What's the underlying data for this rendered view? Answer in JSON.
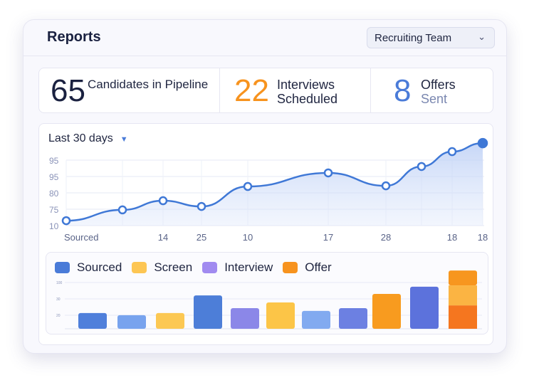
{
  "header": {
    "title": "Reports",
    "team_select": "Recruiting Team"
  },
  "stats": [
    {
      "value": "65",
      "label": "Candidates in Pipeline",
      "color": "#1a2140"
    },
    {
      "value": "22",
      "label_line1": "Interviews",
      "label_line2": "Scheduled",
      "color": "#f7931e"
    },
    {
      "value": "8",
      "label_line1": "Offers",
      "label_line2": "Sent",
      "color": "#4a7bd8"
    }
  ],
  "range_select": "Last 30 days",
  "chart_data": [
    {
      "type": "area",
      "y_tick_labels": [
        "10",
        "75",
        "80",
        "95",
        "95"
      ],
      "x_tick_labels": [
        "Sourced",
        "",
        "14",
        "25",
        "10",
        "17",
        "28",
        "",
        "18",
        "18"
      ],
      "values": [
        0.3,
        0.96,
        1.52,
        1.17,
        2.39,
        3.22,
        2.43,
        3.61,
        4.52,
        5.04
      ],
      "grid": true,
      "color": "#3f78d6"
    },
    {
      "type": "bar",
      "legend": [
        "Sourced",
        "Screen",
        "Interview",
        "Offer"
      ],
      "legend_colors": [
        "#4a7bd8",
        "#fdc653",
        "#a18bf0",
        "#f7931e"
      ],
      "legend_placement": "top-left",
      "y_tick_labels": [
        "20",
        "30",
        "100"
      ],
      "bars": [
        {
          "values": [
            9.6
          ],
          "colors": [
            "#4f7fdb"
          ]
        },
        {
          "values": [
            8.3
          ],
          "colors": [
            "#78a3ee"
          ]
        },
        {
          "values": [
            9.6
          ],
          "colors": [
            "#fcc853"
          ]
        },
        {
          "values": [
            20.4
          ],
          "colors": [
            "#4d7ed8"
          ]
        },
        {
          "values": [
            12.6
          ],
          "colors": [
            "#8b87e8"
          ]
        },
        {
          "values": [
            16.1
          ],
          "colors": [
            "#fcc547"
          ]
        },
        {
          "values": [
            10.9
          ],
          "colors": [
            "#82aaf0"
          ]
        },
        {
          "values": [
            12.6
          ],
          "colors": [
            "#6c80e2"
          ]
        },
        {
          "values": [
            21.3
          ],
          "colors": [
            "#f89b1f"
          ]
        },
        {
          "values": [
            25.7
          ],
          "colors": [
            "#5c72dc"
          ]
        },
        {
          "values": [
            14.3,
            12.2,
            9.1
          ],
          "colors": [
            "#f5761f",
            "#fbb443",
            "#f7961f"
          ]
        }
      ]
    }
  ]
}
